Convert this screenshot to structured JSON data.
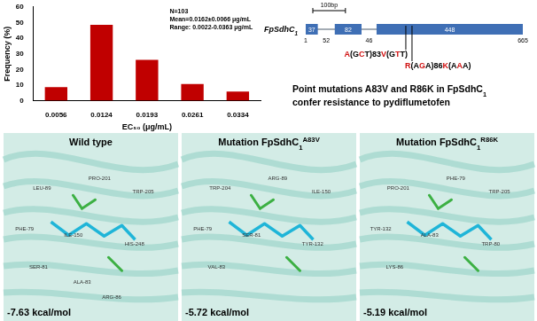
{
  "chart_data": {
    "type": "bar",
    "categories": [
      "0.0056",
      "0.0124",
      "0.0193",
      "0.0261",
      "0.0334"
    ],
    "values": [
      8.7,
      48.5,
      26.2,
      10.7,
      5.8
    ],
    "color": "#c00000",
    "x_label": "EC₅₀ (μg/mL)",
    "y_label": "Frequency (%)",
    "annotations": [
      "N=103",
      "Mean=0.0162±0.0066 μg/mL",
      "Range: 0.0022-0.0363 μg/mL"
    ],
    "ylim": [
      0,
      60
    ],
    "yticks": [
      0,
      10,
      20,
      30,
      40,
      50,
      60
    ],
    "grid": false
  },
  "gene_diagram": {
    "name": [
      {
        "text": "FpSdhC"
      },
      {
        "text": "1",
        "sub": true
      }
    ],
    "scale_bar": {
      "value": 100,
      "label": "100bp"
    },
    "exons": [
      37,
      82,
      448
    ],
    "introns": [
      52,
      46
    ],
    "start": 1,
    "end": 665,
    "mutations": [
      "A(GCT)83V(GTT)",
      "R(AGA)86K(AAA)"
    ]
  },
  "headline": [
    {
      "text": "Point mutations A83V and R86K in FpSdhC"
    },
    {
      "text": "1",
      "sub": true
    },
    {
      "text": " confer resistance to pydiflumetofen"
    }
  ],
  "docking_panels": [
    {
      "title": [
        {
          "text": "Wild type"
        }
      ],
      "energy": "-7.63 kcal/mol",
      "residues": [
        "LEU-89",
        "PRO-201",
        "TRP-205",
        "PHE-79",
        "ILE-150",
        "HIS-248",
        "SER-81",
        "ALA-83",
        "ARG-86"
      ]
    },
    {
      "title": [
        {
          "text": "Mutation FpSdhC"
        },
        {
          "text": "1",
          "sub": true
        },
        {
          "text": "A83V",
          "sup": true
        }
      ],
      "energy": "-5.72 kcal/mol",
      "residues": [
        "TRP-204",
        "ARG-89",
        "ILE-150",
        "PHE-79",
        "SER-81",
        "TYR-132",
        "VAL-83"
      ]
    },
    {
      "title": [
        {
          "text": "Mutation FpSdhC"
        },
        {
          "text": "1",
          "sub": true
        },
        {
          "text": "R86K",
          "sup": true
        }
      ],
      "energy": "-5.19 kcal/mol",
      "residues": [
        "PRO-201",
        "PHE-79",
        "TRP-205",
        "TYR-132",
        "ALA-83",
        "TRP-80",
        "LYS-86"
      ]
    }
  ]
}
